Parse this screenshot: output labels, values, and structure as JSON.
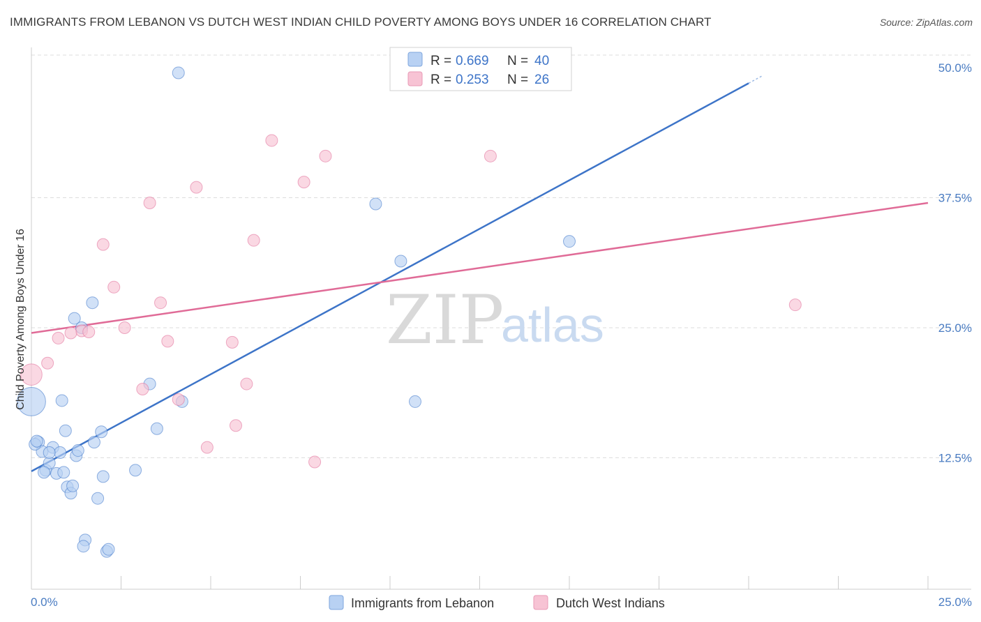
{
  "title": "IMMIGRANTS FROM LEBANON VS DUTCH WEST INDIAN CHILD POVERTY AMONG BOYS UNDER 16 CORRELATION CHART",
  "source": "Source: ZipAtlas.com",
  "watermark": {
    "zip": "ZIP",
    "atlas": "atlas"
  },
  "colors": {
    "blue": "#3d74c8",
    "blue_fill": "#b8d1f3",
    "pink": "#e06b97",
    "pink_fill": "#f7c3d4",
    "grid": "#dddddd"
  },
  "legend": {
    "r_label": "R =",
    "n_label": "N =",
    "series": [
      {
        "r": "0.669",
        "n": "40"
      },
      {
        "r": "0.253",
        "n": "26"
      }
    ]
  },
  "chart_data": {
    "type": "scatter",
    "title": "IMMIGRANTS FROM LEBANON VS DUTCH WEST INDIAN CHILD POVERTY AMONG BOYS UNDER 16 CORRELATION CHART",
    "xlabel": "",
    "ylabel": "Child Poverty Among Boys Under 16",
    "xlim": [
      0,
      25
    ],
    "ylim": [
      0,
      50
    ],
    "x_tick_labels": [
      "0.0%",
      "25.0%"
    ],
    "y_ticks": [
      12.5,
      25.0,
      37.5,
      50.0
    ],
    "y_tick_labels": [
      "12.5%",
      "25.0%",
      "37.5%",
      "50.0%"
    ],
    "grid": true,
    "series": [
      {
        "name": "Immigrants from Lebanon",
        "color": "#3d74c8",
        "fill": "#b8d1f3",
        "trend": {
          "x": [
            0,
            20
          ],
          "y": [
            11.2,
            48.5
          ]
        },
        "points": [
          {
            "x": 4.1,
            "y": 49.5,
            "s": 1
          },
          {
            "x": 0.2,
            "y": 14.0,
            "s": 1
          },
          {
            "x": 0.3,
            "y": 13.1,
            "s": 1
          },
          {
            "x": 0.1,
            "y": 13.8,
            "s": 1
          },
          {
            "x": 0.4,
            "y": 11.3,
            "s": 1
          },
          {
            "x": 0.5,
            "y": 12.0,
            "s": 1
          },
          {
            "x": 0.6,
            "y": 13.5,
            "s": 1
          },
          {
            "x": 0.7,
            "y": 11.0,
            "s": 1
          },
          {
            "x": 0.8,
            "y": 13.0,
            "s": 1
          },
          {
            "x": 0.9,
            "y": 11.1,
            "s": 1
          },
          {
            "x": 0.85,
            "y": 18.0,
            "s": 1
          },
          {
            "x": 0.95,
            "y": 15.1,
            "s": 1
          },
          {
            "x": 1.0,
            "y": 9.7,
            "s": 1
          },
          {
            "x": 1.1,
            "y": 9.1,
            "s": 1
          },
          {
            "x": 1.15,
            "y": 9.8,
            "s": 1
          },
          {
            "x": 1.2,
            "y": 25.9,
            "s": 1
          },
          {
            "x": 1.25,
            "y": 12.7,
            "s": 1
          },
          {
            "x": 1.3,
            "y": 13.2,
            "s": 1
          },
          {
            "x": 1.4,
            "y": 25.0,
            "s": 1
          },
          {
            "x": 1.5,
            "y": 4.6,
            "s": 1
          },
          {
            "x": 1.45,
            "y": 4.0,
            "s": 1
          },
          {
            "x": 1.7,
            "y": 27.4,
            "s": 1
          },
          {
            "x": 1.75,
            "y": 14.0,
            "s": 1
          },
          {
            "x": 1.85,
            "y": 8.6,
            "s": 1
          },
          {
            "x": 1.95,
            "y": 15.0,
            "s": 1
          },
          {
            "x": 2.0,
            "y": 10.7,
            "s": 1
          },
          {
            "x": 2.1,
            "y": 3.5,
            "s": 1
          },
          {
            "x": 2.15,
            "y": 3.7,
            "s": 1
          },
          {
            "x": 2.9,
            "y": 11.3,
            "s": 1
          },
          {
            "x": 3.3,
            "y": 19.6,
            "s": 1
          },
          {
            "x": 3.5,
            "y": 15.3,
            "s": 1
          },
          {
            "x": 4.2,
            "y": 17.9,
            "s": 1
          },
          {
            "x": 9.6,
            "y": 36.9,
            "s": 1
          },
          {
            "x": 10.3,
            "y": 31.4,
            "s": 1
          },
          {
            "x": 10.7,
            "y": 17.9,
            "s": 1
          },
          {
            "x": 15.0,
            "y": 33.3,
            "s": 1
          },
          {
            "x": 0.0,
            "y": 17.9,
            "s": 2.4
          },
          {
            "x": 0.15,
            "y": 14.1,
            "s": 1
          },
          {
            "x": 0.35,
            "y": 11.1,
            "s": 1
          },
          {
            "x": 0.5,
            "y": 13.0,
            "s": 1
          }
        ]
      },
      {
        "name": "Dutch West Indians",
        "color": "#e06b97",
        "fill": "#f7c3d4",
        "trend": {
          "x": [
            0,
            25
          ],
          "y": [
            24.5,
            37.0
          ]
        },
        "points": [
          {
            "x": 6.7,
            "y": 43.0,
            "s": 1
          },
          {
            "x": 8.2,
            "y": 41.5,
            "s": 1
          },
          {
            "x": 12.8,
            "y": 41.5,
            "s": 1
          },
          {
            "x": 7.6,
            "y": 39.0,
            "s": 1
          },
          {
            "x": 4.6,
            "y": 38.5,
            "s": 1
          },
          {
            "x": 3.3,
            "y": 37.0,
            "s": 1
          },
          {
            "x": 6.2,
            "y": 33.4,
            "s": 1
          },
          {
            "x": 2.0,
            "y": 33.0,
            "s": 1
          },
          {
            "x": 2.3,
            "y": 28.9,
            "s": 1
          },
          {
            "x": 3.6,
            "y": 27.4,
            "s": 1
          },
          {
            "x": 2.6,
            "y": 25.0,
            "s": 1
          },
          {
            "x": 1.4,
            "y": 24.7,
            "s": 1
          },
          {
            "x": 1.6,
            "y": 24.6,
            "s": 1
          },
          {
            "x": 1.1,
            "y": 24.5,
            "s": 1
          },
          {
            "x": 0.75,
            "y": 24.0,
            "s": 1
          },
          {
            "x": 3.8,
            "y": 23.7,
            "s": 1
          },
          {
            "x": 5.6,
            "y": 23.6,
            "s": 1
          },
          {
            "x": 0.45,
            "y": 21.6,
            "s": 1
          },
          {
            "x": 0.0,
            "y": 20.5,
            "s": 1.8
          },
          {
            "x": 6.0,
            "y": 19.6,
            "s": 1
          },
          {
            "x": 3.1,
            "y": 19.1,
            "s": 1
          },
          {
            "x": 4.1,
            "y": 18.1,
            "s": 1
          },
          {
            "x": 5.7,
            "y": 15.6,
            "s": 1
          },
          {
            "x": 4.9,
            "y": 13.5,
            "s": 1
          },
          {
            "x": 7.9,
            "y": 12.1,
            "s": 1
          },
          {
            "x": 21.3,
            "y": 27.2,
            "s": 1
          }
        ]
      }
    ]
  }
}
